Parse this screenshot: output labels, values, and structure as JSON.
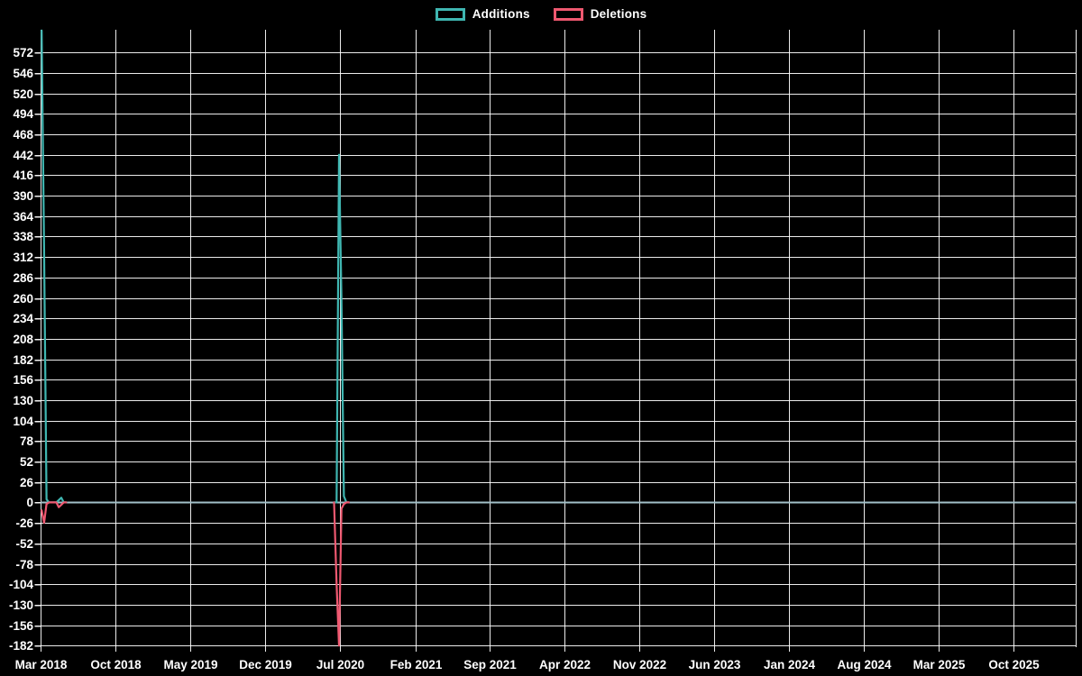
{
  "page": {
    "background": "#000000",
    "text_color": "#ffffff"
  },
  "legend": {
    "position": "top",
    "items": [
      {
        "label": "Additions",
        "color": "#3fb6b1"
      },
      {
        "label": "Deletions",
        "color": "#ee5870"
      }
    ]
  },
  "chart_data": {
    "type": "line",
    "title": "",
    "legend_position": "top",
    "grid": true,
    "background": "#000000",
    "grid_color": "#ffffff",
    "zero_line_color": "#a2c0c9",
    "axis_text_color": "#ffffff",
    "x_tick_labels": [
      "Mar 2018",
      "Oct 2018",
      "May 2019",
      "Dec 2019",
      "Jul 2020",
      "Feb 2021",
      "Sep 2021",
      "Apr 2022",
      "Nov 2022",
      "Jun 2023",
      "Jan 2024",
      "Aug 2024",
      "Mar 2025",
      "Oct 2025"
    ],
    "x_axis": {
      "start_tick": "2018-03-01",
      "end_tick": "2025-10-01",
      "tick_interval_months": 7,
      "num_ticks": 14
    },
    "y_ticks": [
      572,
      546,
      520,
      494,
      468,
      442,
      416,
      390,
      364,
      338,
      312,
      286,
      260,
      234,
      208,
      182,
      156,
      130,
      104,
      78,
      52,
      26,
      0,
      -26,
      -52,
      -78,
      -104,
      -130,
      -156,
      -182
    ],
    "y_tick_step": 26,
    "ylim": [
      -184,
      601
    ],
    "gap_split_days": 30,
    "series": [
      {
        "name": "Additions",
        "color": "#3fb6b1",
        "points": [
          [
            "2018-03-04",
            600
          ],
          [
            "2018-03-11",
            322
          ],
          [
            "2018-03-18",
            4
          ],
          [
            "2018-03-25",
            0
          ],
          [
            "2018-04-15",
            0
          ],
          [
            "2018-04-22",
            3
          ],
          [
            "2018-04-29",
            6
          ],
          [
            "2018-05-06",
            0
          ],
          [
            "2018-05-13",
            0
          ],
          [
            "2020-06-14",
            0
          ],
          [
            "2020-06-21",
            0
          ],
          [
            "2020-06-28",
            442
          ],
          [
            "2020-07-05",
            258
          ],
          [
            "2020-07-12",
            8
          ],
          [
            "2020-07-19",
            0
          ],
          [
            "2020-07-26",
            0
          ]
        ]
      },
      {
        "name": "Deletions",
        "color": "#ee5870",
        "points": [
          [
            "2018-03-04",
            -10
          ],
          [
            "2018-03-11",
            -26
          ],
          [
            "2018-03-18",
            -2
          ],
          [
            "2018-03-25",
            0
          ],
          [
            "2018-04-15",
            0
          ],
          [
            "2018-04-22",
            -6
          ],
          [
            "2018-04-29",
            -3
          ],
          [
            "2018-05-06",
            0
          ],
          [
            "2018-05-13",
            0
          ],
          [
            "2020-06-14",
            0
          ],
          [
            "2020-06-21",
            -104
          ],
          [
            "2020-06-28",
            -182
          ],
          [
            "2020-07-05",
            -8
          ],
          [
            "2020-07-12",
            -2
          ],
          [
            "2020-07-19",
            0
          ],
          [
            "2020-07-26",
            0
          ]
        ]
      }
    ]
  }
}
